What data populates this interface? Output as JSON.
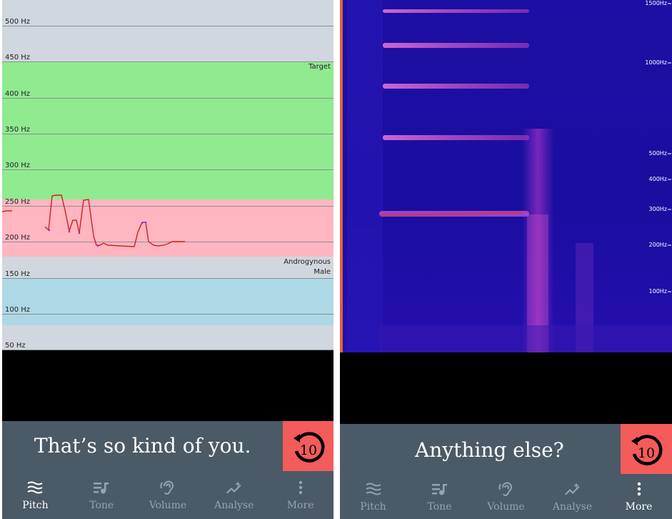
{
  "left": {
    "graph": {
      "hz_labels": [
        "500 Hz",
        "450 Hz",
        "400 Hz",
        "350 Hz",
        "300 Hz",
        "250 Hz",
        "200 Hz",
        "150 Hz",
        "100 Hz",
        "50 Hz"
      ],
      "band_labels": {
        "target": "Target",
        "androgynous": "Androgynous",
        "male": "Male"
      },
      "colors": {
        "target": "#90ea90",
        "female": "#ffb6c1",
        "male": "#add8e6",
        "neutral": "#d0d7de",
        "trace": "#d22020"
      }
    },
    "prompt": "That’s so kind of you.",
    "replay_label": "10",
    "nav": [
      {
        "label": "Pitch",
        "icon": "waves-icon",
        "active": true
      },
      {
        "label": "Tone",
        "icon": "music-list-icon",
        "active": false
      },
      {
        "label": "Volume",
        "icon": "ear-icon",
        "active": false
      },
      {
        "label": "Analyse",
        "icon": "sparkle-chart-icon",
        "active": false
      },
      {
        "label": "More",
        "icon": "more-vertical-icon",
        "active": false
      }
    ]
  },
  "right": {
    "freq_labels": [
      "1500Hz",
      "1000Hz",
      "500Hz",
      "400Hz",
      "300Hz",
      "200Hz",
      "100Hz"
    ],
    "prompt": "Anything else?",
    "replay_label": "10",
    "nav": [
      {
        "label": "Pitch",
        "icon": "waves-icon",
        "active": false
      },
      {
        "label": "Tone",
        "icon": "music-list-icon",
        "active": false
      },
      {
        "label": "Volume",
        "icon": "ear-icon",
        "active": false
      },
      {
        "label": "Analyse",
        "icon": "sparkle-chart-icon",
        "active": false
      },
      {
        "label": "More",
        "icon": "more-vertical-icon",
        "active": true
      }
    ]
  }
}
